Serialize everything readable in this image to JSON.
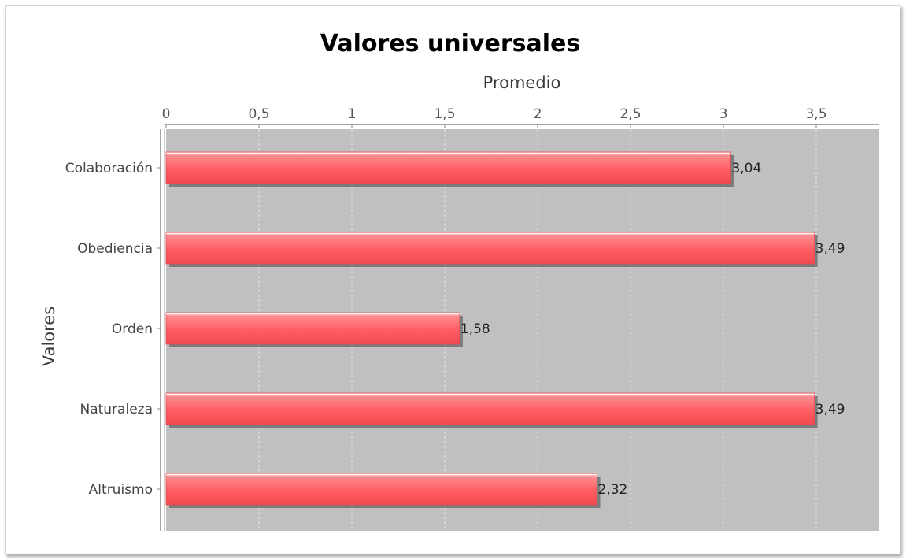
{
  "chart_data": {
    "type": "bar",
    "orientation": "horizontal",
    "title": "Valores universales",
    "xlabel": "Promedio",
    "ylabel": "Valores",
    "categories": [
      "Colaboración",
      "Obediencia",
      "Orden",
      "Naturaleza",
      "Altruismo"
    ],
    "values": [
      3.04,
      3.49,
      1.58,
      3.49,
      2.32
    ],
    "data_labels": [
      "3,04",
      "3,49",
      "1,58",
      "3,49",
      "2,32"
    ],
    "xlim": [
      0,
      3.85
    ],
    "xticks": [
      0,
      0.5,
      1,
      1.5,
      2,
      2.5,
      3,
      3.5
    ],
    "xtick_labels": [
      "0",
      "0,5",
      "1",
      "1,5",
      "2",
      "2,5",
      "3",
      "3,5"
    ],
    "value_axis_position": "top",
    "grid": true,
    "legend": "none",
    "colors": {
      "bar": "#ff5e63",
      "bar_highlight": "#ffd9d9",
      "bar_shadow": "#7c7c7c",
      "plot_background": "#c0c0c0",
      "grid": "#e8e8e8"
    }
  }
}
